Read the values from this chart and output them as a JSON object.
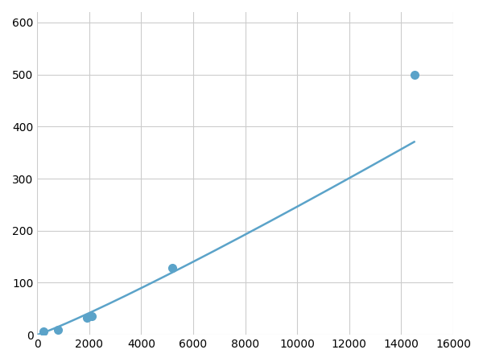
{
  "x_points": [
    250,
    800,
    1900,
    2100,
    5200,
    14500
  ],
  "y_points": [
    7,
    10,
    32,
    35,
    128,
    500
  ],
  "line_color": "#5ba3c9",
  "marker_color": "#5ba3c9",
  "marker_size": 7,
  "line_width": 1.8,
  "xlim": [
    0,
    16000
  ],
  "ylim": [
    0,
    620
  ],
  "xticks": [
    0,
    2000,
    4000,
    6000,
    8000,
    10000,
    12000,
    14000,
    16000
  ],
  "yticks": [
    0,
    100,
    200,
    300,
    400,
    500,
    600
  ],
  "grid_color": "#cccccc",
  "background_color": "#ffffff",
  "fig_width": 6.0,
  "fig_height": 4.5,
  "dpi": 100
}
